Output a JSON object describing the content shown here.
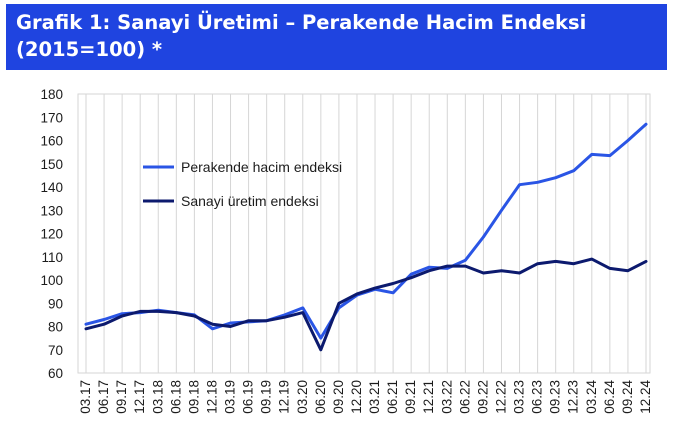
{
  "header": {
    "title_line1": "Grafik 1: Sanayi Üretimi – Perakende Hacim Endeksi",
    "title_line2": "(2015=100) *",
    "background": "#1f44e0"
  },
  "chart_data": {
    "type": "line",
    "title": "Grafik 1: Sanayi Üretimi – Perakende Hacim Endeksi (2015=100) *",
    "xlabel": "",
    "ylabel": "",
    "ylim": [
      60,
      180
    ],
    "yticks": [
      60,
      70,
      80,
      90,
      100,
      110,
      120,
      130,
      140,
      150,
      160,
      170,
      180
    ],
    "grid": "vertical",
    "legend_position": "upper-left",
    "x": [
      "03.17",
      "06.17",
      "09.17",
      "12.17",
      "03.18",
      "06.18",
      "09.18",
      "12.18",
      "03.19",
      "06.19",
      "09.19",
      "12.19",
      "03.20",
      "06.20",
      "09.20",
      "12.20",
      "03.21",
      "06.21",
      "09.21",
      "12.21",
      "03.22",
      "06.22",
      "09.22",
      "12.22",
      "03.23",
      "06.23",
      "09.23",
      "12.23",
      "03.24",
      "06.24",
      "09.24",
      "12.24"
    ],
    "series": [
      {
        "name": "Perakende hacim endeksi",
        "color": "#2a55e5",
        "values": [
          81,
          83,
          85.5,
          86,
          87,
          86,
          85,
          79,
          81.5,
          82,
          82.5,
          85,
          88,
          75,
          88,
          93.5,
          96,
          94.5,
          102.5,
          105.5,
          105,
          108.5,
          118.5,
          130,
          141,
          142,
          144,
          147,
          154,
          153.5,
          160,
          167
        ]
      },
      {
        "name": "Sanayi üretim endeksi",
        "color": "#0c1a6e",
        "values": [
          79,
          81,
          84.5,
          86.5,
          86.5,
          86,
          84.5,
          81,
          80,
          82.5,
          82.5,
          84,
          86,
          70,
          90,
          94,
          96.5,
          98.5,
          101,
          104,
          106,
          106,
          103,
          104,
          103,
          107,
          108,
          107,
          109,
          105,
          104,
          108
        ]
      }
    ]
  }
}
